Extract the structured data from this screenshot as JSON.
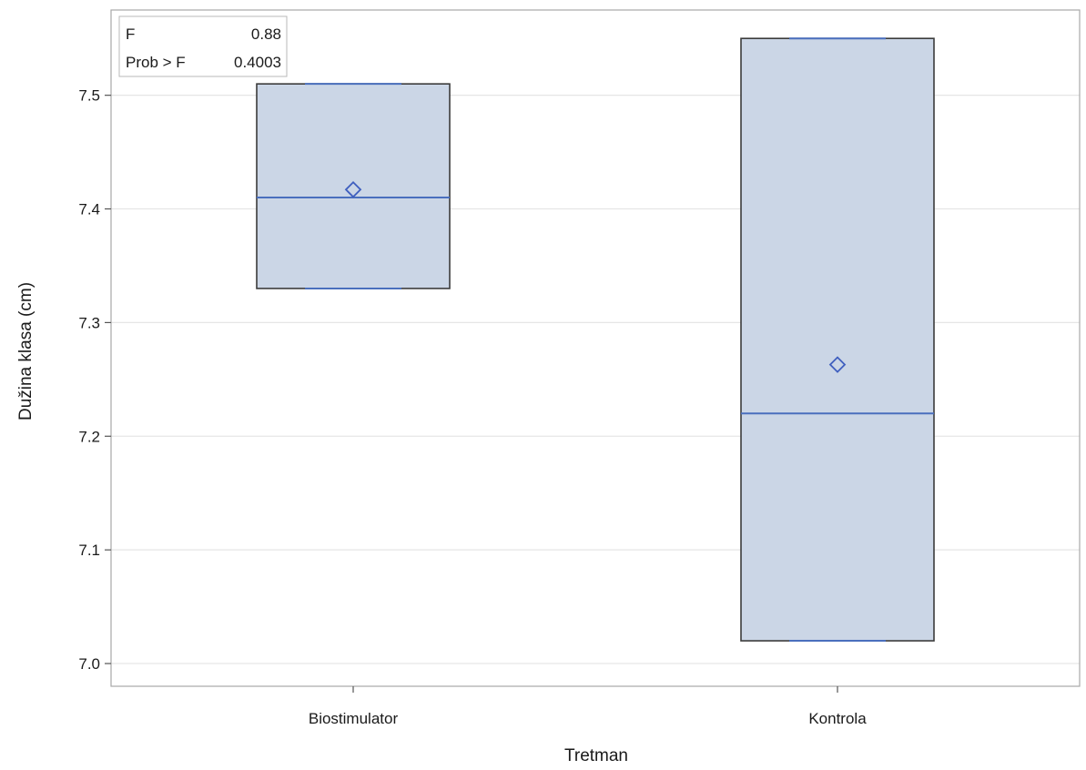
{
  "chart_data": {
    "type": "box",
    "xlabel": "Tretman",
    "ylabel": "Dužina klasa (cm)",
    "ylim": [
      6.98,
      7.575
    ],
    "yticks": [
      7.0,
      7.1,
      7.2,
      7.3,
      7.4,
      7.5
    ],
    "ytick_labels": [
      "7.0",
      "7.1",
      "7.2",
      "7.3",
      "7.4",
      "7.5"
    ],
    "grid": true,
    "categories": [
      "Biostimulator",
      "Kontrola"
    ],
    "boxes": [
      {
        "category": "Biostimulator",
        "min": 7.33,
        "q1": 7.33,
        "median": 7.41,
        "q3": 7.51,
        "max": 7.51,
        "mean": 7.417
      },
      {
        "category": "Kontrola",
        "min": 7.02,
        "q1": 7.02,
        "median": 7.22,
        "q3": 7.55,
        "max": 7.55,
        "mean": 7.263
      }
    ],
    "stats_inset": {
      "rows": [
        {
          "label": "F",
          "value": "0.88"
        },
        {
          "label": "Prob > F",
          "value": "0.4003"
        }
      ],
      "position": "top-left"
    },
    "colors": {
      "box_fill": "#cbd6e6",
      "box_outline": "#3b3b3b",
      "median_line": "#4a6fbd",
      "mean_marker": "#3f5fbf",
      "grid": "#e6e6e6",
      "frame": "#a8a8a8"
    }
  }
}
